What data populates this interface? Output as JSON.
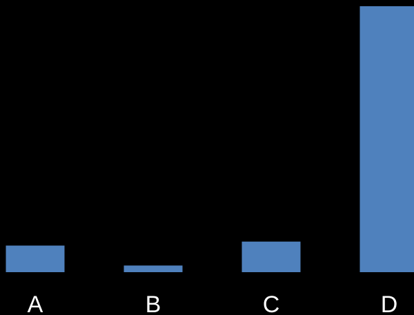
{
  "chart_data": {
    "type": "bar",
    "categories": [
      "A",
      "B",
      "C",
      "D"
    ],
    "values": [
      10,
      2.5,
      11.5,
      100
    ],
    "ylim": [
      0,
      100
    ],
    "grid": false,
    "legend": "none",
    "colors": {
      "background": "#000000",
      "bar": "#4f81bd",
      "text": "#ffffff"
    }
  }
}
